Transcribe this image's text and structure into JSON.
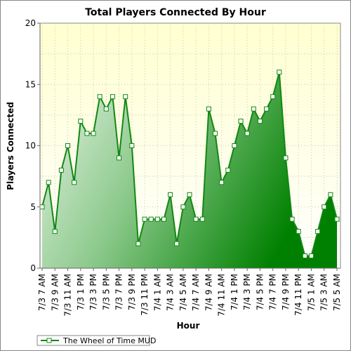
{
  "chart_data": {
    "type": "area",
    "title": "Total Players Connected By Hour",
    "xlabel": "Hour",
    "ylabel": "Players Connected",
    "ylim": [
      0,
      20
    ],
    "yticks": [
      0,
      5,
      10,
      15,
      20
    ],
    "grid": true,
    "legend_position": "bottom-left",
    "xtick_labels": [
      "7/3 7 AM",
      "7/3 9 AM",
      "7/3 11 AM",
      "7/3 1 PM",
      "7/3 3 PM",
      "7/3 5 PM",
      "7/3 7 PM",
      "7/3 9 PM",
      "7/3 11 PM",
      "7/4 1 AM",
      "7/4 3 AM",
      "7/4 5 AM",
      "7/4 7 AM",
      "7/4 9 AM",
      "7/4 11 AM",
      "7/4 1 PM",
      "7/4 3 PM",
      "7/4 5 PM",
      "7/4 7 PM",
      "7/4 9 PM",
      "7/4 11 PM",
      "7/5 1 AM",
      "7/5 3 AM",
      "7/5 5 AM"
    ],
    "series": [
      {
        "name": "The Wheel of Time MUD",
        "values": [
          5,
          7,
          3,
          8,
          10,
          7,
          12,
          11,
          11,
          14,
          13,
          14,
          9,
          14,
          10,
          2,
          4,
          4,
          4,
          4,
          6,
          2,
          5,
          6,
          4,
          4,
          13,
          11,
          7,
          8,
          10,
          12,
          11,
          13,
          12,
          13,
          14,
          16,
          9,
          4,
          3,
          1,
          1,
          3,
          5,
          6,
          4
        ]
      }
    ]
  },
  "colors": {
    "line": "#118811",
    "fill_light": "#d8ecd8",
    "fill_dark": "#008000",
    "plot_bg_top": "#ffffd6",
    "plot_bg_bottom": "#ffffff"
  }
}
